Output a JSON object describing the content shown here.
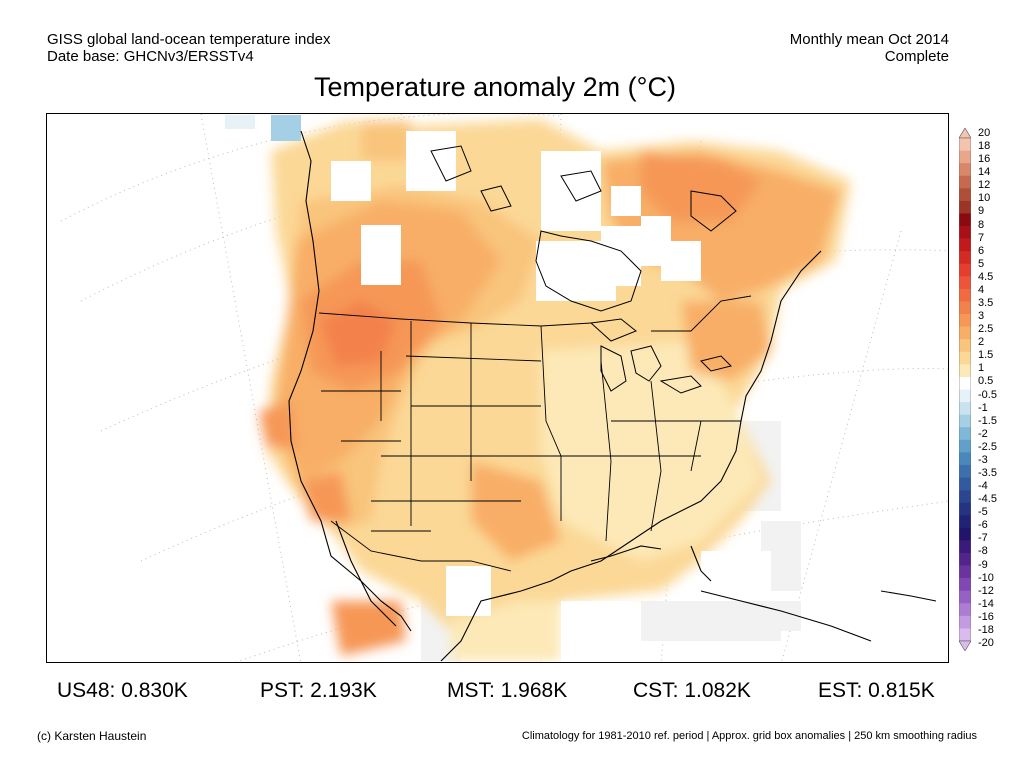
{
  "header": {
    "dataset_line1": "GISS global land-ocean temperature index",
    "dataset_line2": "Date base: GHCNv3/ERSSTv4",
    "period_line1": "Monthly mean Oct 2014",
    "period_line2": "Complete"
  },
  "title": "Temperature anomaly 2m (°C)",
  "map": {
    "region": "North America",
    "variable": "2m temperature anomaly",
    "units": "°C",
    "missing_data_color": "#ffffff",
    "near_zero_color": "#f2f2f2",
    "coastline_color": "#000000"
  },
  "colorbar": {
    "labels": [
      "20",
      "18",
      "16",
      "14",
      "12",
      "10",
      "9",
      "8",
      "7",
      "6",
      "5",
      "4.5",
      "4",
      "3.5",
      "3",
      "2.5",
      "2",
      "1.5",
      "1",
      "0.5",
      "-0.5",
      "-1",
      "-1.5",
      "-2",
      "-2.5",
      "-3",
      "-3.5",
      "-4",
      "-4.5",
      "-5",
      "-6",
      "-7",
      "-8",
      "-9",
      "-10",
      "-12",
      "-14",
      "-16",
      "-18",
      "-20"
    ],
    "colors": [
      "#f4c4b0",
      "#e8a68a",
      "#d9876a",
      "#c66a4e",
      "#b04f38",
      "#9c3526",
      "#8b0a12",
      "#a80f16",
      "#c01a1a",
      "#d32a23",
      "#e33e2e",
      "#ec553a",
      "#f06b42",
      "#f3814b",
      "#f69756",
      "#f8ae66",
      "#f9c47c",
      "#fbd896",
      "#fde9b7",
      "#ffffff",
      "#e6f1f8",
      "#c9e2f0",
      "#a5cfe5",
      "#80b8d8",
      "#62a0ca",
      "#4a87bb",
      "#3c6fad",
      "#325a9e",
      "#2a4690",
      "#243382",
      "#1f2275",
      "#22146a",
      "#3a1a7a",
      "#52248c",
      "#6a33a0",
      "#8147b3",
      "#9760c4",
      "#ad7cd3",
      "#c49be1",
      "#d9bbee"
    ]
  },
  "stats": [
    {
      "region": "US48",
      "value": "0.830K",
      "text": "US48: 0.830K"
    },
    {
      "region": "PST",
      "value": "2.193K",
      "text": "PST: 2.193K"
    },
    {
      "region": "MST",
      "value": "1.968K",
      "text": "MST: 1.968K"
    },
    {
      "region": "CST",
      "value": "1.082K",
      "text": "CST: 1.082K"
    },
    {
      "region": "EST",
      "value": "0.815K",
      "text": "EST: 0.815K"
    }
  ],
  "footer": {
    "credit": "(c) Karsten Haustein",
    "notes": "Climatology for 1981-2010 ref. period | Approx. grid box anomalies | 250 km smoothing radius"
  }
}
